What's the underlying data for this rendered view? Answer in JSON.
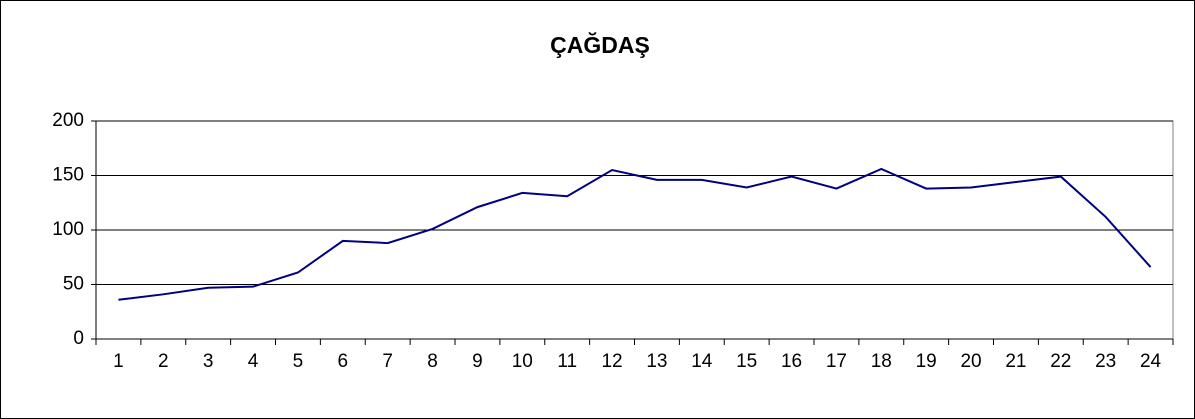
{
  "chart_data": {
    "type": "line",
    "title": "ÇAĞDAŞ",
    "categories": [
      "1",
      "2",
      "3",
      "4",
      "5",
      "6",
      "7",
      "8",
      "9",
      "10",
      "11",
      "12",
      "13",
      "14",
      "15",
      "16",
      "17",
      "18",
      "19",
      "20",
      "21",
      "22",
      "23",
      "24"
    ],
    "series": [
      {
        "name": "ÇAĞDAŞ",
        "color": "#000080",
        "values": [
          36,
          41,
          47,
          48,
          61,
          90,
          88,
          101,
          121,
          134,
          131,
          155,
          146,
          146,
          139,
          149,
          138,
          156,
          138,
          139,
          144,
          149,
          112,
          66
        ]
      }
    ],
    "ylim": [
      0,
      200
    ],
    "yticks": [
      0,
      50,
      100,
      150,
      200
    ],
    "grid": true
  }
}
